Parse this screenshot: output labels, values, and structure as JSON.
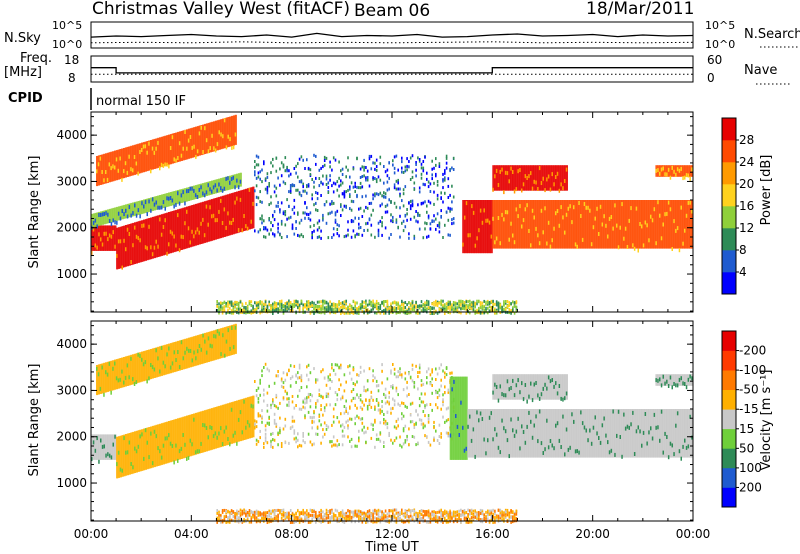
{
  "header": {
    "title": "Christmas Valley West (fitACF)",
    "beam": "Beam 06",
    "date": "18/Mar/2011"
  },
  "panel_labels": {
    "nsky": "N.Sky",
    "nsearch": "N.Search",
    "freq": "Freq.",
    "freq_unit": "[MHz]",
    "nave": "Nave",
    "cpid": "CPID",
    "cpid_value": "normal 150 IF",
    "nsky_ticks": [
      "10^5",
      "10^0"
    ],
    "nsearch_ticks": [
      "10^5",
      "10^0"
    ],
    "freq_ticks": [
      "18",
      "8"
    ],
    "nave_ticks": [
      "60",
      "0"
    ]
  },
  "chart_data": [
    {
      "type": "line",
      "panel": "noise",
      "xlabel": "Time UT",
      "series": [
        {
          "name": "N.Sky",
          "style": "solid",
          "x": [
            0,
            1,
            2,
            3,
            4,
            5,
            6,
            7,
            8,
            9,
            10,
            11,
            12,
            13,
            14,
            15,
            16,
            17,
            18,
            19,
            20,
            21,
            22,
            23,
            24
          ],
          "y": [
            2.1,
            2.3,
            2.2,
            2.4,
            2.6,
            2.3,
            2.2,
            2.5,
            2.1,
            2.8,
            2.2,
            2.4,
            2.3,
            2.6,
            2.1,
            2.2,
            2.5,
            2.7,
            2.3,
            2.4,
            2.6,
            2.2,
            2.5,
            2.3,
            2.4
          ]
        },
        {
          "name": "N.Search",
          "style": "dotted",
          "x": [
            0,
            2,
            4,
            6,
            8,
            10,
            12,
            14,
            16,
            18,
            20,
            22,
            24
          ],
          "y": [
            1.0,
            1.1,
            1.0,
            1.2,
            1.0,
            1.1,
            1.0,
            1.1,
            1.2,
            1.0,
            1.1,
            1.0,
            1.1
          ]
        }
      ]
    },
    {
      "type": "line",
      "panel": "freq",
      "series": [
        {
          "name": "Freq.",
          "style": "solid",
          "x": [
            0,
            1.0,
            1.0,
            16.0,
            16.0,
            24
          ],
          "y": [
            13.5,
            13.5,
            11.5,
            11.5,
            13.5,
            13.5
          ]
        },
        {
          "name": "Nave",
          "style": "dotted",
          "x": [
            0,
            6,
            12,
            18,
            24
          ],
          "y": [
            18,
            18,
            18,
            18,
            18
          ]
        }
      ]
    },
    {
      "type": "heatmap",
      "panel": "power",
      "ylabel": "Slant Range [km]",
      "xlabel": "Time UT",
      "xlim": [
        0,
        24
      ],
      "ylim": [
        180,
        4500
      ],
      "xticks": [
        "00:00",
        "04:00",
        "08:00",
        "12:00",
        "16:00",
        "20:00",
        "00:00"
      ],
      "yticks": [
        1000,
        2000,
        3000,
        4000
      ],
      "colorbar": {
        "label": "Power [dB]",
        "ticks": [
          "4",
          "8",
          "12",
          "16",
          "20",
          "24",
          "28"
        ],
        "colors": [
          "#0000ff",
          "#1f5bd0",
          "#2e8b57",
          "#8fcf3a",
          "#ffd21e",
          "#ff9a00",
          "#ff4a00",
          "#e60000"
        ]
      },
      "bands": [
        {
          "t0": 0.0,
          "t1": 1.0,
          "r0": 1500,
          "r1": 2050,
          "level": 7
        },
        {
          "t0": 1.0,
          "t1": 6.5,
          "r0": 1100,
          "r1": 2000,
          "rise": 900,
          "level": 7
        },
        {
          "t0": 0.0,
          "t1": 6.0,
          "r0": 2000,
          "r1": 2300,
          "rise": 900,
          "level": 3
        },
        {
          "t0": 0.2,
          "t1": 5.8,
          "r0": 2900,
          "r1": 3550,
          "rise": 900,
          "level": 6
        },
        {
          "t0": 6.5,
          "t1": 14.5,
          "r0": 1800,
          "r1": 3600,
          "level": 1,
          "scatter": true
        },
        {
          "t0": 14.8,
          "t1": 16.0,
          "r0": 1450,
          "r1": 2600,
          "level": 7
        },
        {
          "t0": 16.0,
          "t1": 24.0,
          "r0": 1550,
          "r1": 2600,
          "level": 6
        },
        {
          "t0": 16.0,
          "t1": 19.0,
          "r0": 2800,
          "r1": 3350,
          "level": 7
        },
        {
          "t0": 22.5,
          "t1": 24.0,
          "r0": 3100,
          "r1": 3350,
          "level": 6
        },
        {
          "t0": 5.0,
          "t1": 17.0,
          "r0": 180,
          "r1": 450,
          "level": 3,
          "scatter": true
        }
      ]
    },
    {
      "type": "heatmap",
      "panel": "velocity",
      "ylabel": "Slant Range [km]",
      "xlabel": "Time UT",
      "xlim": [
        0,
        24
      ],
      "ylim": [
        180,
        4500
      ],
      "xticks": [
        "00:00",
        "04:00",
        "08:00",
        "12:00",
        "16:00",
        "20:00",
        "00:00"
      ],
      "yticks": [
        1000,
        2000,
        3000,
        4000
      ],
      "colorbar": {
        "label": "Velocity [m s⁻¹]",
        "ticks": [
          "200",
          "100",
          "50",
          "15",
          "-15",
          "-50",
          "-100",
          "-200"
        ],
        "colors": [
          "#0000ff",
          "#1f5bd0",
          "#2e8b57",
          "#6fcf3a",
          "#c8c8c8",
          "#ffb000",
          "#ff7a00",
          "#ff3a00",
          "#e60000"
        ]
      },
      "bands": [
        {
          "t0": 0.0,
          "t1": 1.0,
          "r0": 1500,
          "r1": 2050,
          "level": 4
        },
        {
          "t0": 1.0,
          "t1": 6.5,
          "r0": 1100,
          "r1": 2000,
          "rise": 900,
          "level": 5
        },
        {
          "t0": 0.2,
          "t1": 5.8,
          "r0": 2900,
          "r1": 3550,
          "rise": 900,
          "level": 5
        },
        {
          "t0": 6.5,
          "t1": 14.5,
          "r0": 1800,
          "r1": 3600,
          "level": 4,
          "scatter": true
        },
        {
          "t0": 14.3,
          "t1": 15.0,
          "r0": 1500,
          "r1": 3300,
          "level": 3
        },
        {
          "t0": 15.0,
          "t1": 24.0,
          "r0": 1550,
          "r1": 2600,
          "level": 4
        },
        {
          "t0": 16.0,
          "t1": 19.0,
          "r0": 2800,
          "r1": 3350,
          "level": 4
        },
        {
          "t0": 22.5,
          "t1": 24.0,
          "r0": 3100,
          "r1": 3350,
          "level": 4
        },
        {
          "t0": 5.0,
          "t1": 17.0,
          "r0": 180,
          "r1": 450,
          "level": 5,
          "scatter": true
        }
      ]
    }
  ]
}
